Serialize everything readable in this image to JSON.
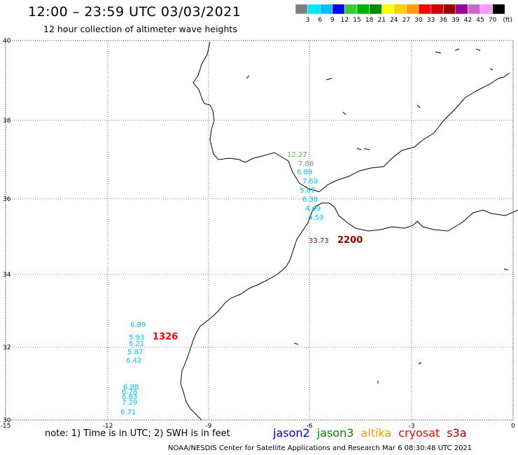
{
  "header": {
    "title": "12:00 – 23:59 UTC 03/03/2021",
    "subtitle": "12 hour collection of altimeter wave heights"
  },
  "colorbar": {
    "swatches": [
      "#808080",
      "#00e5ff",
      "#00bfff",
      "#0000ff",
      "#33cc33",
      "#00b000",
      "#008800",
      "#ffff00",
      "#ffd000",
      "#ffa000",
      "#ff0000",
      "#cc0000",
      "#990000",
      "#990099",
      "#cc66cc",
      "#ff99ff",
      "#000000"
    ],
    "labels": [
      "3",
      "6",
      "9",
      "12",
      "15",
      "18",
      "21",
      "24",
      "27",
      "30",
      "33",
      "36",
      "39",
      "42",
      "45",
      "70"
    ],
    "unit": "(ft)"
  },
  "axes": {
    "lon_ticks": [
      "-15",
      "-12",
      "-9",
      "-6",
      "-3",
      "0"
    ],
    "lat_ticks": [
      "40",
      "38",
      "36",
      "34",
      "32",
      "30"
    ]
  },
  "observations": [
    {
      "label": "12.27",
      "color": "#44cc33"
    },
    {
      "label": "7.88",
      "color": "#888888"
    },
    {
      "label": "6.89",
      "color": "#00bfff"
    },
    {
      "label": "7.69",
      "color": "#00bfff"
    },
    {
      "label": "5.67",
      "color": "#00bfff"
    },
    {
      "label": "6.38",
      "color": "#00bfff"
    },
    {
      "label": "4.69",
      "color": "#00bfff"
    },
    {
      "label": "4.59",
      "color": "#00bfff"
    },
    {
      "label": "33.73",
      "color": "#990000"
    },
    {
      "label": "2200",
      "color": "#990000"
    },
    {
      "label": "6.89",
      "color": "#00bfff"
    },
    {
      "label": "5.93",
      "color": "#00bfff"
    },
    {
      "label": "6.21",
      "color": "#00bfff"
    },
    {
      "label": "1326",
      "color": "#ff0000"
    },
    {
      "label": "5.87",
      "color": "#00bfff"
    },
    {
      "label": "6.42",
      "color": "#00bfff"
    },
    {
      "label": "6.88",
      "color": "#00bfff"
    },
    {
      "label": "6.76",
      "color": "#00bfff"
    },
    {
      "label": "6.83",
      "color": "#00bfff"
    },
    {
      "label": "7.29",
      "color": "#00bfff"
    },
    {
      "label": "6.71",
      "color": "#00bfff"
    }
  ],
  "footer": {
    "note": "note: 1) Time is in UTC; 2) SWH is in feet",
    "credit": "NOAA/NESDIS Center for Satellite Applications and Research   Mar  6 08:30:48 UTC 2021"
  },
  "legend": [
    {
      "label": "jason2",
      "color": "#0000cc"
    },
    {
      "label": "jason3",
      "color": "#008800"
    },
    {
      "label": "altika",
      "color": "#ff9900"
    },
    {
      "label": "cryosat",
      "color": "#ff0000"
    },
    {
      "label": "s3a",
      "color": "#990000"
    }
  ]
}
